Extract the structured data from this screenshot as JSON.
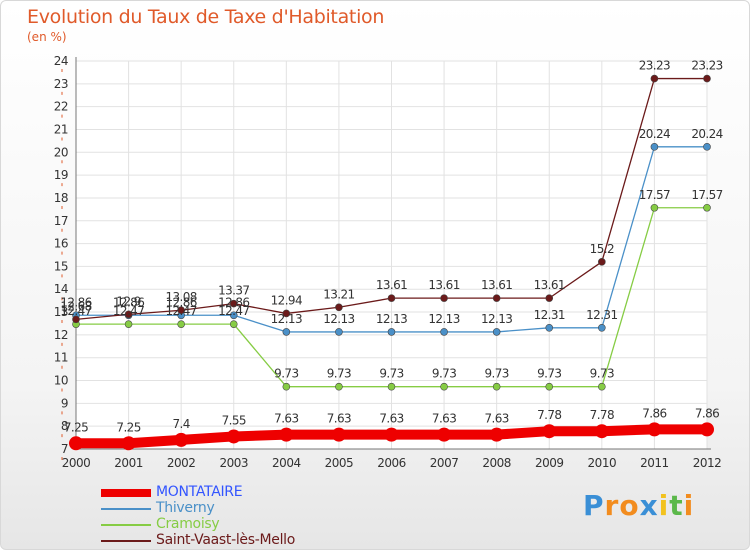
{
  "title": "Evolution du Taux de Taxe d'Habitation",
  "subtitle": "(en %)",
  "logo": {
    "text": "Proxiti",
    "letters": [
      {
        "ch": "P",
        "color": "#3a8fd6"
      },
      {
        "ch": "r",
        "color": "#f28c1e"
      },
      {
        "ch": "o",
        "color": "#f28c1e"
      },
      {
        "ch": "x",
        "color": "#3a8fd6"
      },
      {
        "ch": "i",
        "color": "#f2c21e"
      },
      {
        "ch": "t",
        "color": "#5bb84a"
      },
      {
        "ch": "i",
        "color": "#f28c1e"
      }
    ]
  },
  "chart_data": {
    "type": "line",
    "title": "Evolution du Taux de Taxe d'Habitation",
    "ylabel": "(en %)",
    "x": [
      "2000",
      "2001",
      "2002",
      "2003",
      "2004",
      "2005",
      "2006",
      "2007",
      "2008",
      "2009",
      "2010",
      "2011",
      "2012"
    ],
    "ylim": [
      7,
      24
    ],
    "yticks": [
      7,
      8,
      9,
      10,
      11,
      12,
      13,
      14,
      15,
      16,
      17,
      18,
      19,
      20,
      21,
      22,
      23,
      24
    ],
    "grid": true,
    "legend_position": "bottom-left",
    "series": [
      {
        "name": "MONTATAIRE",
        "color": "#ee0000",
        "bold": true,
        "values": [
          7.25,
          7.25,
          7.4,
          7.55,
          7.63,
          7.63,
          7.63,
          7.63,
          7.63,
          7.78,
          7.78,
          7.86,
          7.86
        ],
        "labels": [
          "7.25",
          "7.25",
          "7.4",
          "7.55",
          "7.63",
          "7.63",
          "7.63",
          "7.63",
          "7.63",
          "7.78",
          "7.78",
          "7.86",
          "7.86"
        ]
      },
      {
        "name": "Thiverny",
        "color": "#4a90c8",
        "values": [
          12.86,
          12.86,
          12.86,
          12.86,
          12.13,
          12.13,
          12.13,
          12.13,
          12.13,
          12.31,
          12.31,
          20.24,
          20.24
        ],
        "labels": [
          "12.86",
          "12.86",
          "12.86",
          "12.86",
          "12.13",
          "12.13",
          "12.13",
          "12.13",
          "12.13",
          "12.31",
          "12.31",
          "20.24",
          "20.24"
        ]
      },
      {
        "name": "Cramoisy",
        "color": "#86cc44",
        "values": [
          12.47,
          12.47,
          12.47,
          12.47,
          9.73,
          9.73,
          9.73,
          9.73,
          9.73,
          9.73,
          9.73,
          17.57,
          17.57
        ],
        "labels": [
          "12.47",
          "12.47",
          "12.47",
          "12.47",
          "9.73",
          "9.73",
          "9.73",
          "9.73",
          "9.73",
          "9.73",
          "9.73",
          "17.57",
          "17.57"
        ]
      },
      {
        "name": "Saint-Vaast-lès-Mello",
        "color": "#6b1a1a",
        "values": [
          12.68,
          12.9,
          13.08,
          13.37,
          12.94,
          13.21,
          13.61,
          13.61,
          13.61,
          13.61,
          15.2,
          23.23,
          23.23
        ],
        "labels": [
          "12.68",
          "12.9",
          "13.08",
          "13.37",
          "12.94",
          "13.21",
          "13.61",
          "13.61",
          "13.61",
          "13.61",
          "15.2",
          "23.23",
          "23.23"
        ]
      }
    ]
  }
}
